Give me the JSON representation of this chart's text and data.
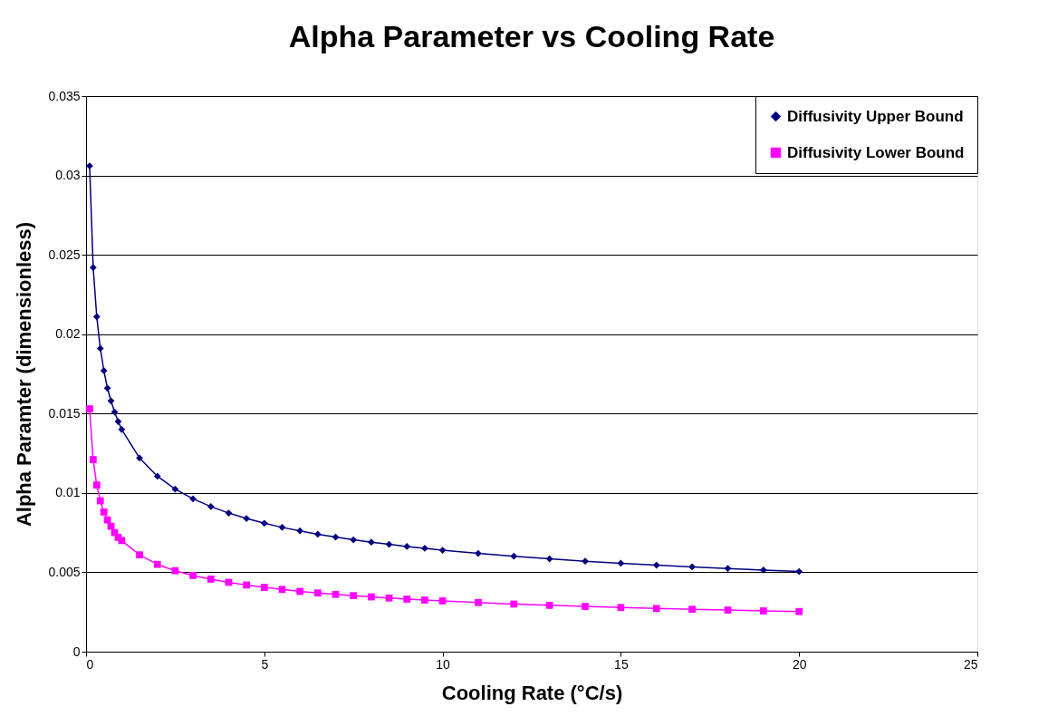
{
  "chart_data": {
    "type": "line",
    "title": "Alpha Parameter vs Cooling Rate",
    "xlabel": "Cooling Rate (°C/s)",
    "ylabel": "Alpha Paramter (dimensionless)",
    "x": [
      0.1,
      0.2,
      0.3,
      0.4,
      0.5,
      0.6,
      0.7,
      0.8,
      0.9,
      1,
      1.5,
      2,
      2.5,
      3,
      3.5,
      4,
      4.5,
      5,
      5.5,
      6,
      6.5,
      7,
      7.5,
      8,
      8.5,
      9,
      9.5,
      10,
      11,
      12,
      13,
      14,
      15,
      16,
      17,
      18,
      19,
      20
    ],
    "series": [
      {
        "name": "Diffusivity Upper Bound",
        "color": "#000080",
        "marker": "diamond",
        "values": [
          0.0306,
          0.0242,
          0.0211,
          0.0191,
          0.0177,
          0.0166,
          0.0158,
          0.0151,
          0.0145,
          0.014,
          0.0122,
          0.01105,
          0.01024,
          0.00963,
          0.00914,
          0.00873,
          0.00839,
          0.00809,
          0.00783,
          0.00761,
          0.0074,
          0.00722,
          0.00705,
          0.0069,
          0.00676,
          0.00663,
          0.00651,
          0.00639,
          0.00619,
          0.00601,
          0.00585,
          0.0057,
          0.00557,
          0.00545,
          0.00534,
          0.00524,
          0.00514,
          0.00505
        ]
      },
      {
        "name": "Diffusivity Lower Bound",
        "color": "#ff00ff",
        "marker": "square",
        "values": [
          0.0153,
          0.0121,
          0.0105,
          0.0095,
          0.0088,
          0.0083,
          0.0079,
          0.0075,
          0.0072,
          0.007,
          0.0061,
          0.0055,
          0.0051,
          0.0048,
          0.00457,
          0.00437,
          0.0042,
          0.00405,
          0.00392,
          0.0038,
          0.0037,
          0.00361,
          0.00353,
          0.00345,
          0.00338,
          0.00331,
          0.00325,
          0.0032,
          0.0031,
          0.003,
          0.00292,
          0.00285,
          0.00278,
          0.00272,
          0.00267,
          0.00262,
          0.00257,
          0.00253
        ]
      }
    ],
    "xlim": [
      0,
      25
    ],
    "xticks": [
      0,
      5,
      10,
      15,
      20,
      25
    ],
    "ylim": [
      0,
      0.035
    ],
    "yticks": [
      0,
      0.005,
      0.01,
      0.015,
      0.02,
      0.025,
      0.03,
      0.035
    ],
    "grid": "y",
    "legend": "top right",
    "line_style": "solid"
  }
}
